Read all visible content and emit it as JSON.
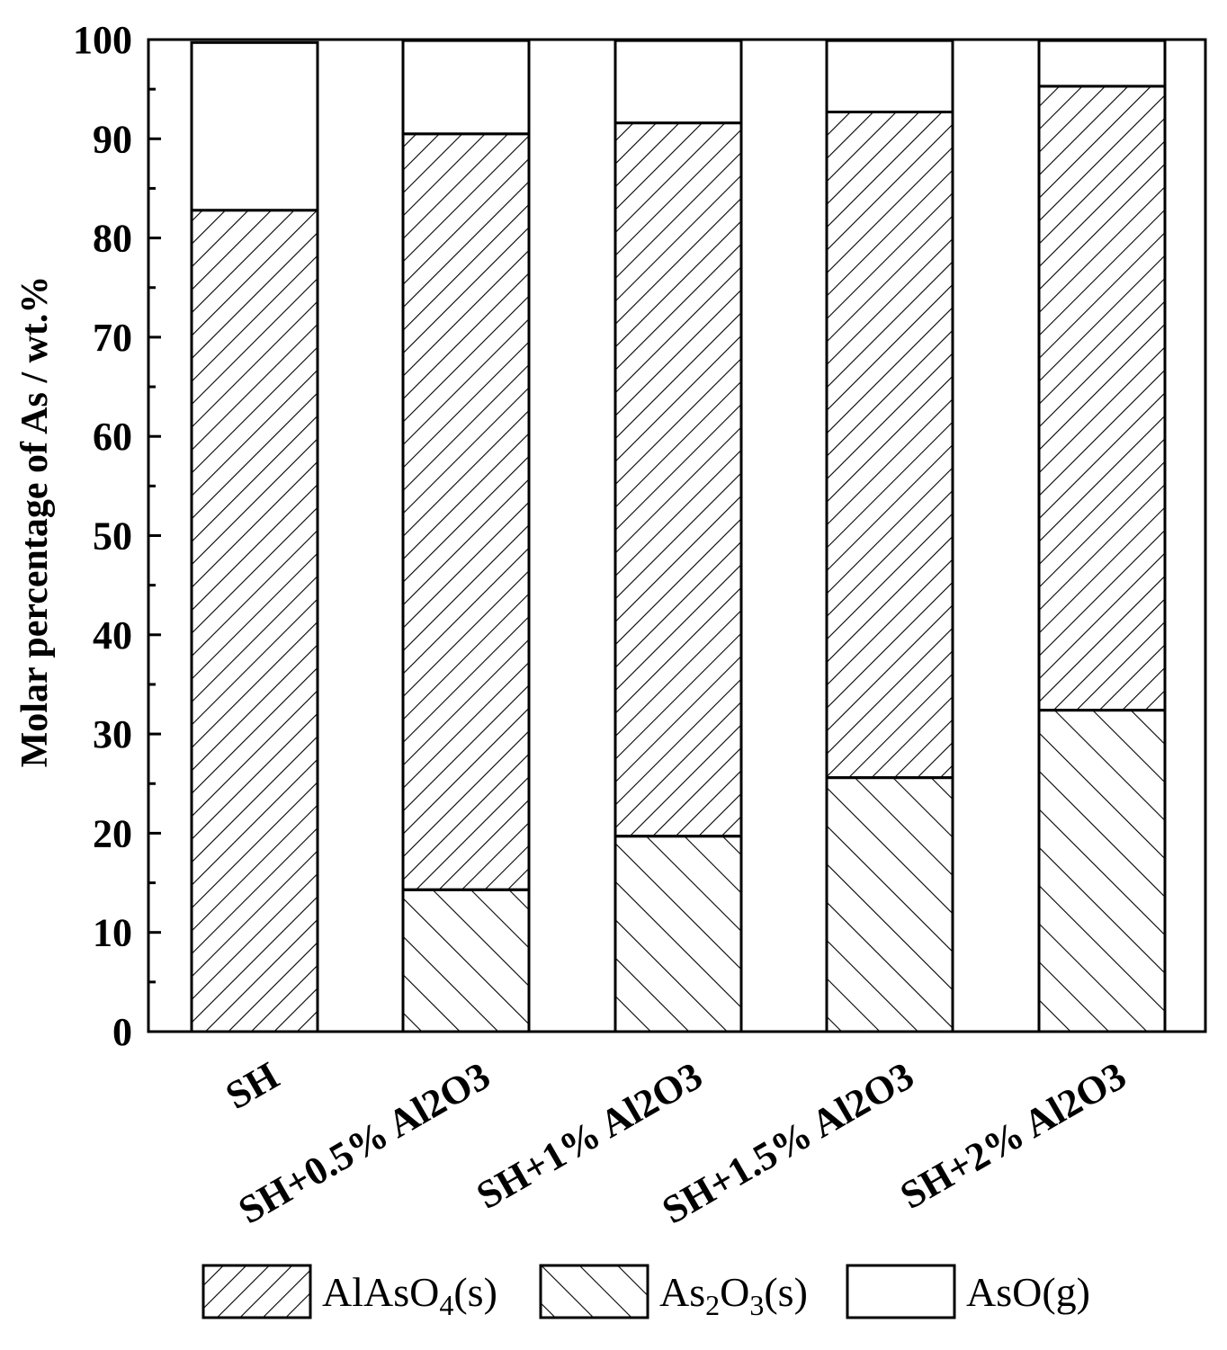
{
  "chart_data": {
    "type": "bar",
    "stacked": true,
    "categories": [
      "SH",
      "SH+0.5% Al2O3",
      "SH+1% Al2O3",
      "SH+1.5% Al2O3",
      "SH+2% Al2O3"
    ],
    "series": [
      {
        "name": "As2O3(s)",
        "label_main": "As",
        "label_sub1": "2",
        "label_mid": "O",
        "label_sub2": "3",
        "label_tail": "(s)",
        "pattern": "hatch-backslash",
        "values": [
          0,
          14.3,
          19.7,
          25.6,
          32.4
        ]
      },
      {
        "name": "AlAsO4(s)",
        "label_main": "AlAsO",
        "label_sub1": "4",
        "label_tail": "(s)",
        "pattern": "hatch-slash",
        "values": [
          82.8,
          76.2,
          71.9,
          67.1,
          62.9
        ]
      },
      {
        "name": "AsO(g)",
        "label_main": "AsO(g)",
        "pattern": "none",
        "values": [
          16.9,
          9.4,
          8.3,
          7.2,
          4.6
        ]
      }
    ],
    "legend_order": [
      "AlAsO4(s)",
      "As2O3(s)",
      "AsO(g)"
    ],
    "xlabel": "",
    "ylabel": "Molar percentage of As / wt.%",
    "ylim": [
      0,
      100
    ],
    "yticks": [
      0,
      10,
      20,
      30,
      40,
      50,
      60,
      70,
      80,
      90,
      100
    ],
    "grid": false,
    "legend_position": "bottom"
  }
}
